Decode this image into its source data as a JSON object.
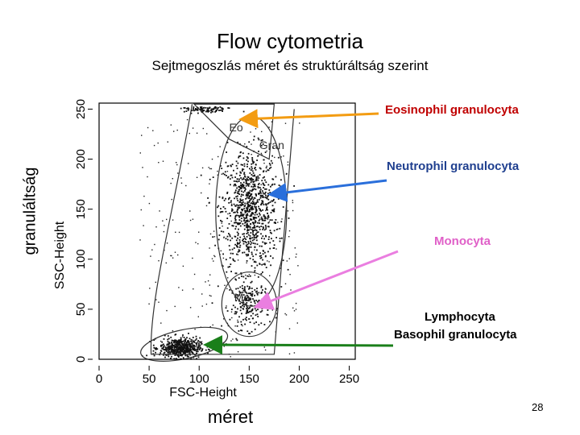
{
  "title": "Flow cytometria",
  "subtitle": "Sejtmegoszlás méret és struktúráltság szerint",
  "outer_axis_labels": {
    "y": "granuláltság",
    "x": "méret"
  },
  "annotations": [
    {
      "text": "Eosinophil granulocyta",
      "color": "#c00000",
      "arrow_color": "#f39c12"
    },
    {
      "text": "Neutrophil granulocyta",
      "color": "#1f3f8f",
      "arrow_color": "#2a6fdb"
    },
    {
      "text": "Monocyta",
      "color": "#e060c8",
      "arrow_color": "#ea7ee0"
    },
    {
      "text": "Lymphocyta",
      "color": "#000000",
      "arrow_color": "#1a7f1a"
    },
    {
      "text": "Basophil granulocyta",
      "color": "#000000",
      "arrow_color": "#1a7f1a"
    }
  ],
  "page_number": "28",
  "chart_data": {
    "type": "scatter",
    "xlabel": "FSC-Height",
    "ylabel": "SSC-Height",
    "xlim": [
      0,
      256
    ],
    "ylim": [
      0,
      256
    ],
    "x_ticks": [
      "0",
      "50",
      "100",
      "150",
      "200",
      "250"
    ],
    "y_ticks": [
      "0",
      "50",
      "100",
      "150",
      "200",
      "250"
    ],
    "gate_labels": [
      "Eo",
      "Gran",
      "Mo",
      "Ly"
    ],
    "populations": [
      {
        "name": "Eo",
        "center": [
          105,
          250
        ],
        "count": 90
      },
      {
        "name": "Gran",
        "center": [
          150,
          150
        ],
        "count": 900
      },
      {
        "name": "Mo",
        "center": [
          150,
          55
        ],
        "count": 200
      },
      {
        "name": "Ly",
        "center": [
          80,
          12
        ],
        "count": 500
      }
    ]
  }
}
